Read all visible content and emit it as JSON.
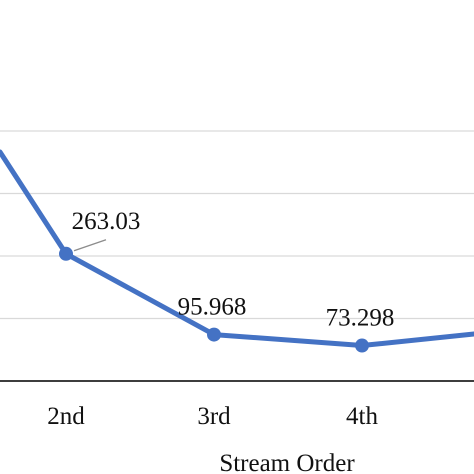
{
  "chart_data": {
    "type": "line",
    "categories": [
      "2nd",
      "3rd",
      "4th"
    ],
    "values": [
      263.03,
      95.968,
      73.298
    ],
    "data_labels": [
      "263.03",
      "95.968",
      "73.298"
    ],
    "xlabel": "Stream Order",
    "ylabel": "",
    "title": "",
    "ylim": [
      0,
      600
    ],
    "grid": true,
    "legend": "none",
    "color": "#4472C4"
  }
}
